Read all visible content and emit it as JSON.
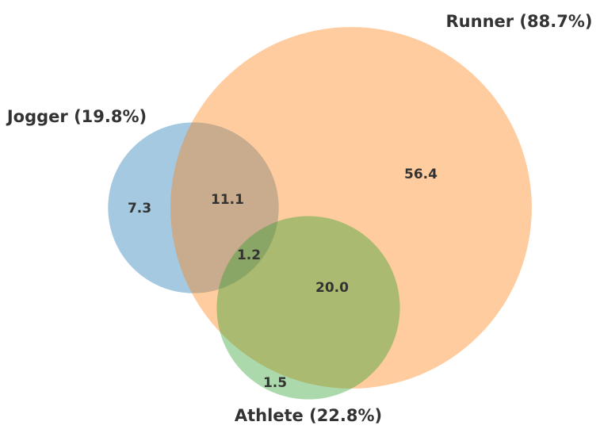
{
  "chart_data": {
    "type": "venn",
    "sets": [
      {
        "label": "Jogger (19.8%)",
        "value": 19.8,
        "color": "#1f77b4"
      },
      {
        "label": "Runner (88.7%)",
        "value": 88.7,
        "color": "#ff7f0e"
      },
      {
        "label": "Athlete (22.8%)",
        "value": 22.8,
        "color": "#2ca02c"
      }
    ],
    "values": [
      7.3,
      11.1,
      56.4,
      1.2,
      20.0,
      1.5
    ],
    "value_labels": [
      "7.3",
      "11.1",
      "56.4",
      "1.2",
      "20.0",
      "1.5"
    ]
  }
}
